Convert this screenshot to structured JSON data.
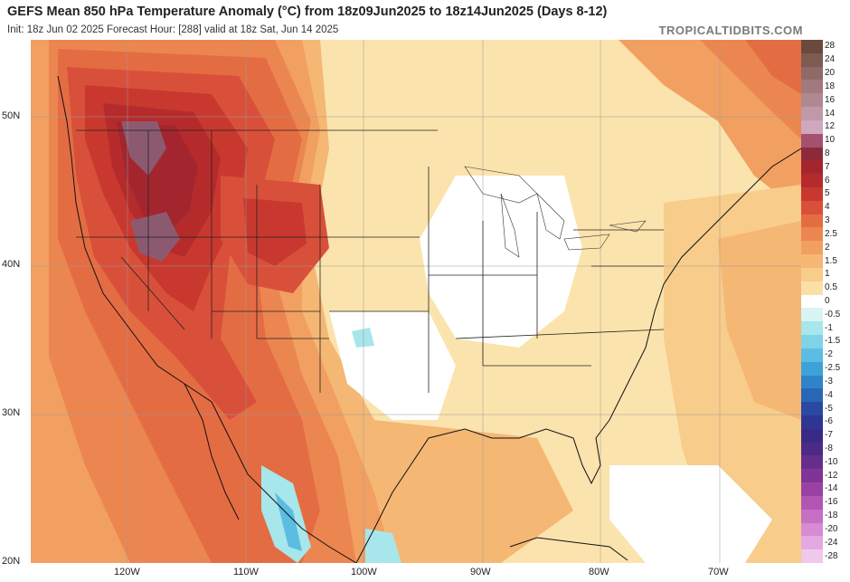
{
  "header": {
    "title": "GEFS Mean 850 hPa Temperature Anomaly (°C) from 18z09Jun2025 to 18z14Jun2025 (Days 8-12)",
    "subtitle": "Init: 18z Jun 02 2025   Forecast Hour: [288]   valid at 18z Sat, Jun 14 2025",
    "brand": "TROPICALTIDBITS.COM"
  },
  "axes": {
    "lat_labels": [
      "50N",
      "40N",
      "30N",
      "20N"
    ],
    "lon_labels": [
      "120W",
      "110W",
      "100W",
      "90W",
      "80W",
      "70W"
    ]
  },
  "colorbar": {
    "levels": [
      "28",
      "24",
      "20",
      "18",
      "16",
      "14",
      "12",
      "10",
      "8",
      "7",
      "6",
      "5",
      "4",
      "3",
      "2.5",
      "2",
      "1.5",
      "1",
      "0.5",
      "0",
      "-0.5",
      "-1",
      "-1.5",
      "-2",
      "-2.5",
      "-3",
      "-4",
      "-5",
      "-6",
      "-7",
      "-8",
      "-10",
      "-12",
      "-14",
      "-16",
      "-18",
      "-20",
      "-24",
      "-28"
    ],
    "colors": [
      "#6b4a3e",
      "#7d5a52",
      "#8f6a66",
      "#a07a7c",
      "#b08890",
      "#c098a8",
      "#cfa8bf",
      "#a4506e",
      "#8c2a3a",
      "#a3262f",
      "#b52b2b",
      "#c8382f",
      "#d9503a",
      "#e46c43",
      "#ec8650",
      "#f1a061",
      "#f5b774",
      "#f8cc8b",
      "#fbe0a6",
      "#ffffff",
      "#d8f4f4",
      "#a7e6ea",
      "#7fd3e6",
      "#5bbde2",
      "#3ea2d8",
      "#2f84c9",
      "#2a66b6",
      "#2a49a3",
      "#2f3593",
      "#3a2a88",
      "#4c2a86",
      "#662e8c",
      "#803596",
      "#9a42a4",
      "#b256b4",
      "#c66fc4",
      "#d68bd3",
      "#e3a9e0",
      "#f0c8ec"
    ]
  }
}
